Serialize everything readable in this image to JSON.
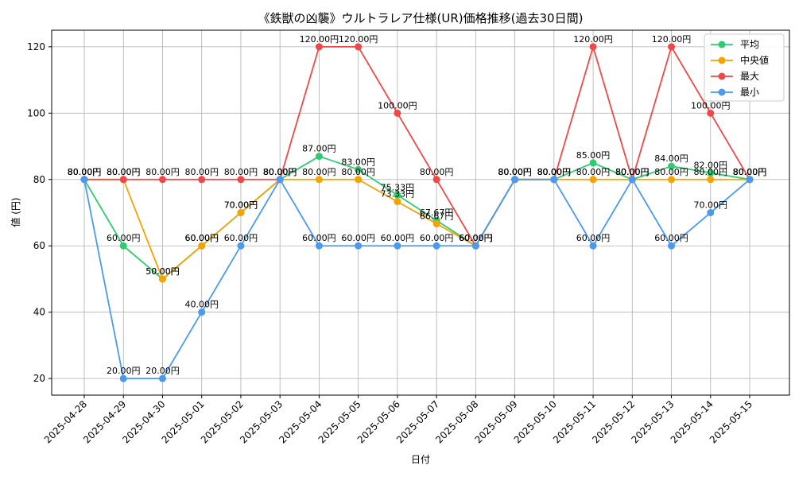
{
  "chart_data": {
    "type": "line",
    "title": "《鉄獣の凶襲》ウルトラレア仕様(UR)価格推移(過去30日間)",
    "xlabel": "日付",
    "ylabel": "値 (円)",
    "ylim": [
      15,
      125
    ],
    "yticks": [
      20,
      40,
      60,
      80,
      100,
      120
    ],
    "grid": true,
    "legend_position": "top-right",
    "categories": [
      "2025-04-28",
      "2025-04-29",
      "2025-04-30",
      "2025-05-01",
      "2025-05-02",
      "2025-05-03",
      "2025-05-04",
      "2025-05-05",
      "2025-05-06",
      "2025-05-07",
      "2025-05-08",
      "2025-05-09",
      "2025-05-10",
      "2025-05-11",
      "2025-05-12",
      "2025-05-13",
      "2025-05-14",
      "2025-05-15"
    ],
    "series": [
      {
        "name": "平均",
        "color": "#2ecc71",
        "values": [
          80,
          60,
          50,
          60,
          70,
          80,
          87,
          83,
          75.33,
          67.67,
          60,
          80,
          80,
          85,
          80,
          84,
          82,
          80
        ]
      },
      {
        "name": "中央値",
        "color": "#f5a300",
        "values": [
          80,
          80,
          50,
          60,
          70,
          80,
          80,
          80,
          73.33,
          66.67,
          60,
          80,
          80,
          80,
          80,
          80,
          80,
          80
        ]
      },
      {
        "name": "最大",
        "color": "#f04848",
        "values": [
          80,
          80,
          80,
          80,
          80,
          80,
          120,
          120,
          100,
          80,
          60,
          80,
          80,
          120,
          80,
          120,
          100,
          80
        ]
      },
      {
        "name": "最小",
        "color": "#4a9af0",
        "values": [
          80,
          20,
          20,
          40,
          60,
          80,
          60,
          60,
          60,
          60,
          60,
          80,
          80,
          60,
          80,
          60,
          70,
          80
        ]
      }
    ],
    "value_label_suffix": "円"
  }
}
